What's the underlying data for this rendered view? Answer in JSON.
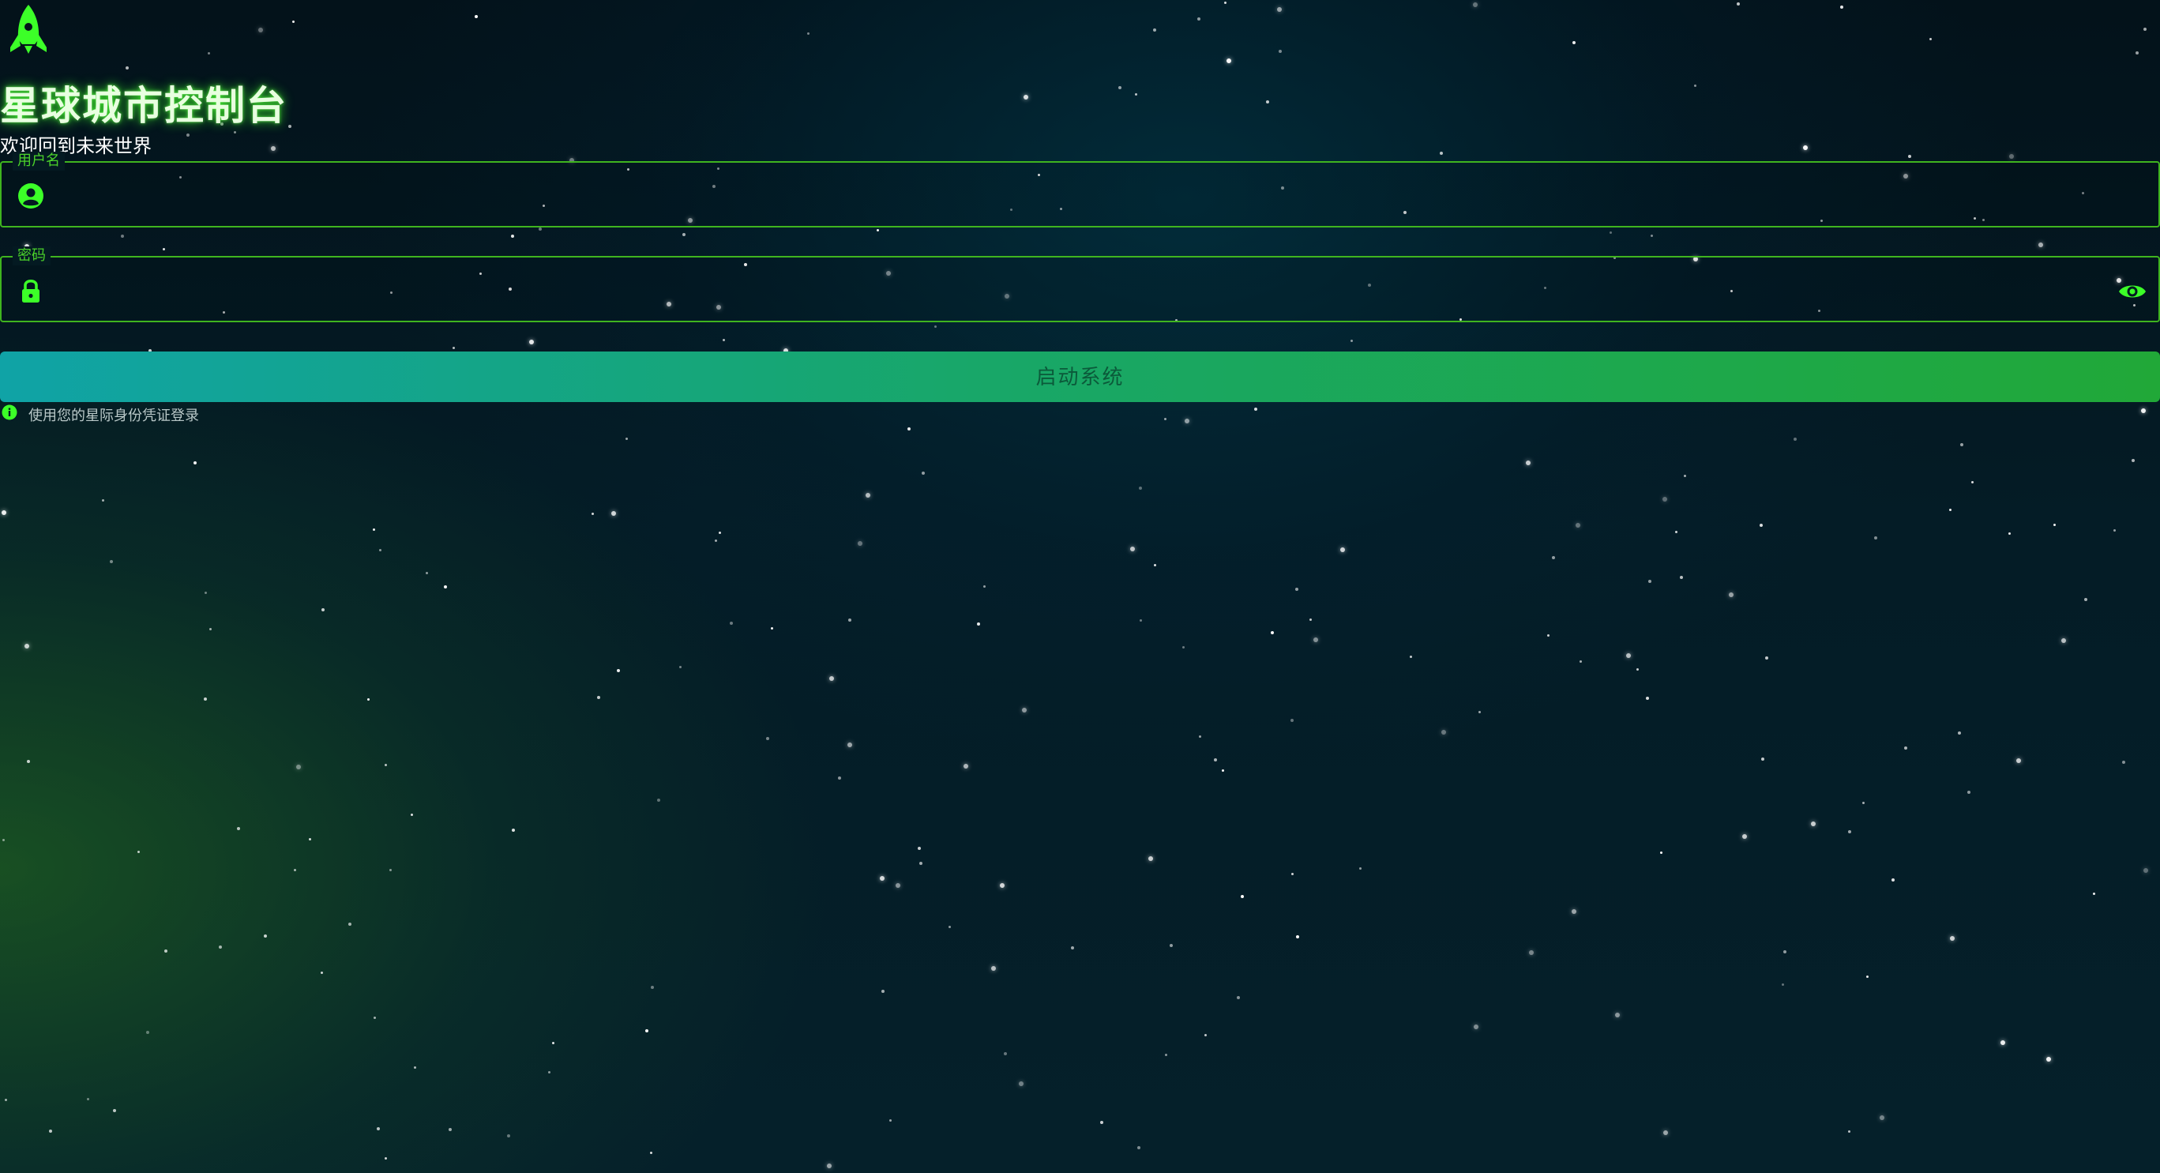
{
  "app": {
    "title": "星球城市控制台",
    "subtitle": "欢迎回到未来世界"
  },
  "form": {
    "username": {
      "label": "用户名",
      "value": "",
      "icon": "user-circle-icon"
    },
    "password": {
      "label": "密码",
      "value": "",
      "icon": "lock-icon",
      "toggle_icon": "eye-icon"
    },
    "submit_label": "启动系统",
    "hint": "使用您的星际身份凭证登录"
  },
  "theme": {
    "accent": "#3cff28",
    "border": "#3fb41f",
    "button_start": "#10a3a6",
    "button_end": "#21a838"
  }
}
